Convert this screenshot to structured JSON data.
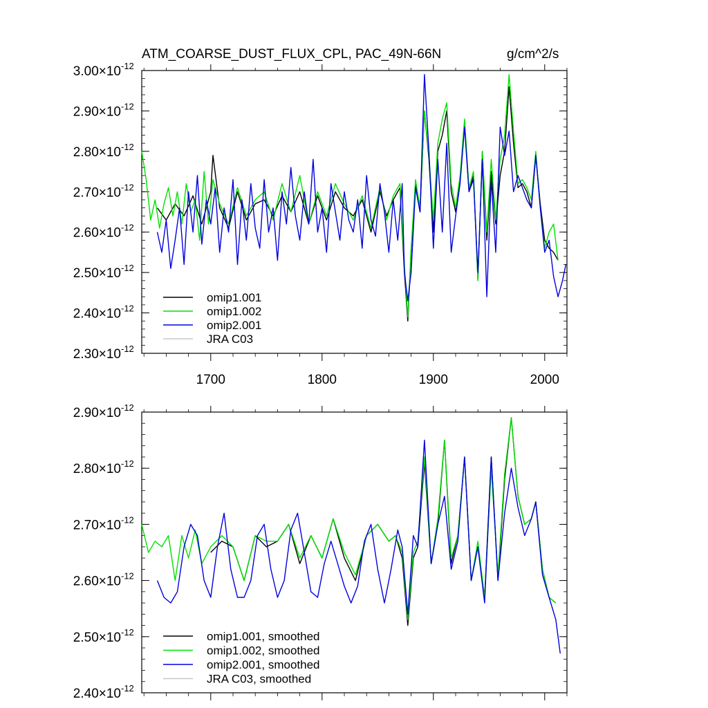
{
  "chart_data": [
    {
      "type": "line",
      "title": "ATM_COARSE_DUST_FLUX_CPL, PAC_49N-66N",
      "units": "g/cm^2/s",
      "xlabel": "",
      "ylabel": "",
      "xlim": [
        1638,
        2020
      ],
      "ylim": [
        2.3,
        3.0
      ],
      "x_ticks": [
        1700,
        1800,
        1900,
        2000
      ],
      "x_tick_labels": [
        "1700",
        "1800",
        "1900",
        "2000"
      ],
      "y_ticks": [
        2.3,
        2.4,
        2.5,
        2.6,
        2.7,
        2.8,
        2.9,
        3.0
      ],
      "y_tick_mantissas": [
        "2.30",
        "2.40",
        "2.50",
        "2.60",
        "2.70",
        "2.80",
        "2.90",
        "3.00"
      ],
      "y_tick_multiplier": "×10",
      "y_tick_exponent": "-12",
      "grid": false,
      "legend_position": "bottom-left",
      "series": [
        {
          "name": "omip1.001",
          "color": "#000000",
          "x": [
            1652,
            1660,
            1668,
            1676,
            1684,
            1692,
            1700,
            1702,
            1708,
            1716,
            1724,
            1732,
            1740,
            1748,
            1756,
            1764,
            1772,
            1780,
            1788,
            1796,
            1804,
            1812,
            1820,
            1828,
            1836,
            1844,
            1852,
            1858,
            1864,
            1870,
            1874,
            1877,
            1880,
            1884,
            1888,
            1892,
            1896,
            1900,
            1904,
            1908,
            1912,
            1916,
            1920,
            1924,
            1928,
            1932,
            1936,
            1940,
            1944,
            1948,
            1952,
            1956,
            1960,
            1964,
            1968,
            1972,
            1976,
            1980,
            1984,
            1988,
            1992,
            1996,
            2000,
            2004,
            2008,
            2012
          ],
          "values": [
            2.66,
            2.63,
            2.67,
            2.64,
            2.69,
            2.62,
            2.7,
            2.79,
            2.66,
            2.61,
            2.7,
            2.63,
            2.67,
            2.68,
            2.64,
            2.69,
            2.65,
            2.7,
            2.62,
            2.69,
            2.63,
            2.7,
            2.66,
            2.64,
            2.68,
            2.6,
            2.7,
            2.64,
            2.68,
            2.71,
            2.5,
            2.38,
            2.55,
            2.72,
            2.65,
            2.9,
            2.78,
            2.6,
            2.8,
            2.84,
            2.9,
            2.7,
            2.65,
            2.73,
            2.87,
            2.7,
            2.74,
            2.48,
            2.8,
            2.58,
            2.75,
            2.62,
            2.74,
            2.8,
            2.96,
            2.82,
            2.71,
            2.72,
            2.7,
            2.66,
            2.79,
            2.67,
            2.58,
            2.56,
            2.55,
            2.53
          ]
        },
        {
          "name": "omip1.002",
          "color": "#00e000",
          "x": [
            1638,
            1642,
            1646,
            1650,
            1654,
            1658,
            1662,
            1666,
            1670,
            1674,
            1678,
            1682,
            1686,
            1690,
            1694,
            1698,
            1702,
            1708,
            1716,
            1724,
            1732,
            1740,
            1748,
            1756,
            1764,
            1772,
            1780,
            1788,
            1796,
            1804,
            1812,
            1820,
            1828,
            1836,
            1844,
            1852,
            1858,
            1864,
            1870,
            1874,
            1877,
            1880,
            1884,
            1888,
            1892,
            1896,
            1900,
            1904,
            1908,
            1912,
            1916,
            1920,
            1924,
            1928,
            1932,
            1936,
            1940,
            1944,
            1948,
            1952,
            1956,
            1960,
            1964,
            1968,
            1972,
            1976,
            1980,
            1984,
            1988,
            1992,
            1996,
            2000,
            2004,
            2008,
            2012
          ],
          "values": [
            2.8,
            2.73,
            2.63,
            2.68,
            2.61,
            2.67,
            2.71,
            2.64,
            2.7,
            2.62,
            2.72,
            2.65,
            2.68,
            2.58,
            2.75,
            2.62,
            2.73,
            2.67,
            2.62,
            2.71,
            2.64,
            2.68,
            2.7,
            2.63,
            2.72,
            2.65,
            2.74,
            2.62,
            2.7,
            2.64,
            2.72,
            2.67,
            2.63,
            2.69,
            2.61,
            2.71,
            2.63,
            2.69,
            2.72,
            2.52,
            2.39,
            2.56,
            2.73,
            2.66,
            2.9,
            2.79,
            2.63,
            2.82,
            2.88,
            2.92,
            2.72,
            2.66,
            2.74,
            2.88,
            2.71,
            2.75,
            2.48,
            2.8,
            2.6,
            2.78,
            2.63,
            2.78,
            2.84,
            2.99,
            2.85,
            2.72,
            2.73,
            2.71,
            2.68,
            2.8,
            2.66,
            2.56,
            2.6,
            2.62,
            2.53
          ]
        },
        {
          "name": "omip2.001",
          "color": "#0000dd",
          "x": [
            1652,
            1656,
            1660,
            1664,
            1668,
            1672,
            1676,
            1680,
            1684,
            1688,
            1692,
            1696,
            1700,
            1704,
            1708,
            1712,
            1716,
            1720,
            1724,
            1728,
            1732,
            1736,
            1740,
            1744,
            1748,
            1752,
            1756,
            1760,
            1764,
            1768,
            1772,
            1776,
            1780,
            1784,
            1788,
            1792,
            1796,
            1800,
            1804,
            1808,
            1812,
            1816,
            1820,
            1824,
            1828,
            1832,
            1836,
            1840,
            1844,
            1848,
            1852,
            1856,
            1860,
            1864,
            1868,
            1872,
            1874,
            1877,
            1880,
            1884,
            1888,
            1892,
            1896,
            1900,
            1904,
            1908,
            1912,
            1916,
            1920,
            1924,
            1928,
            1932,
            1936,
            1940,
            1944,
            1948,
            1952,
            1956,
            1960,
            1964,
            1968,
            1972,
            1976,
            1980,
            1984,
            1988,
            1992,
            1996,
            2000,
            2004,
            2008,
            2012,
            2016,
            2019
          ],
          "values": [
            2.6,
            2.55,
            2.63,
            2.51,
            2.58,
            2.66,
            2.52,
            2.7,
            2.6,
            2.74,
            2.57,
            2.68,
            2.62,
            2.71,
            2.55,
            2.66,
            2.6,
            2.73,
            2.52,
            2.68,
            2.58,
            2.72,
            2.61,
            2.56,
            2.73,
            2.6,
            2.66,
            2.53,
            2.7,
            2.62,
            2.76,
            2.64,
            2.58,
            2.7,
            2.62,
            2.78,
            2.6,
            2.66,
            2.55,
            2.72,
            2.65,
            2.58,
            2.7,
            2.63,
            2.6,
            2.68,
            2.56,
            2.74,
            2.63,
            2.59,
            2.72,
            2.65,
            2.55,
            2.68,
            2.58,
            2.72,
            2.5,
            2.43,
            2.5,
            2.71,
            2.65,
            2.99,
            2.8,
            2.56,
            2.78,
            2.6,
            2.82,
            2.55,
            2.64,
            2.72,
            2.86,
            2.7,
            2.73,
            2.5,
            2.78,
            2.44,
            2.73,
            2.55,
            2.86,
            2.79,
            2.85,
            2.7,
            2.74,
            2.71,
            2.68,
            2.66,
            2.79,
            2.66,
            2.55,
            2.58,
            2.49,
            2.44,
            2.48,
            2.52
          ]
        },
        {
          "name": "JRA C03",
          "color": "#c8c8c8",
          "x": [],
          "values": []
        }
      ]
    },
    {
      "type": "line",
      "title": "",
      "xlabel": "",
      "ylabel": "",
      "xlim": [
        1638,
        2020
      ],
      "ylim": [
        2.4,
        2.9
      ],
      "x_ticks": [
        1700,
        1800,
        1900,
        2000
      ],
      "x_tick_labels": [],
      "y_ticks": [
        2.4,
        2.5,
        2.6,
        2.7,
        2.8,
        2.9
      ],
      "y_tick_mantissas": [
        "2.40",
        "2.50",
        "2.60",
        "2.70",
        "2.80",
        "2.90"
      ],
      "y_tick_multiplier": "×10",
      "y_tick_exponent": "-12",
      "grid": false,
      "legend_position": "bottom-left",
      "series": [
        {
          "name": "omip1.001, smoothed",
          "color": "#000000",
          "x": [
            1700,
            1710,
            1720,
            1730,
            1740,
            1750,
            1760,
            1770,
            1780,
            1790,
            1800,
            1810,
            1820,
            1830,
            1840,
            1850,
            1860,
            1866,
            1872,
            1877,
            1882,
            1886,
            1892,
            1898,
            1904,
            1910,
            1916,
            1922,
            1928,
            1934,
            1940,
            1946,
            1952,
            1958,
            1964,
            1970,
            1976,
            1982,
            1988,
            1992,
            1998,
            2004,
            2010
          ],
          "values": [
            2.65,
            2.67,
            2.66,
            2.6,
            2.68,
            2.66,
            2.67,
            2.7,
            2.63,
            2.68,
            2.64,
            2.71,
            2.64,
            2.6,
            2.68,
            2.7,
            2.67,
            2.68,
            2.64,
            2.52,
            2.64,
            2.66,
            2.81,
            2.63,
            2.7,
            2.85,
            2.63,
            2.68,
            2.82,
            2.6,
            2.66,
            2.57,
            2.82,
            2.6,
            2.78,
            2.89,
            2.75,
            2.7,
            2.71,
            2.74,
            2.62,
            2.57,
            2.56
          ]
        },
        {
          "name": "omip1.002, smoothed",
          "color": "#00e000",
          "x": [
            1638,
            1644,
            1650,
            1656,
            1662,
            1668,
            1674,
            1680,
            1686,
            1692,
            1700,
            1710,
            1720,
            1730,
            1740,
            1750,
            1760,
            1770,
            1780,
            1790,
            1800,
            1810,
            1820,
            1830,
            1840,
            1850,
            1860,
            1866,
            1872,
            1877,
            1882,
            1886,
            1892,
            1898,
            1904,
            1910,
            1916,
            1922,
            1928,
            1934,
            1940,
            1946,
            1952,
            1958,
            1964,
            1970,
            1976,
            1982,
            1988,
            1992,
            1998,
            2004,
            2010
          ],
          "values": [
            2.7,
            2.65,
            2.67,
            2.66,
            2.68,
            2.6,
            2.68,
            2.64,
            2.69,
            2.63,
            2.66,
            2.68,
            2.66,
            2.6,
            2.68,
            2.67,
            2.67,
            2.7,
            2.64,
            2.68,
            2.64,
            2.71,
            2.65,
            2.61,
            2.68,
            2.7,
            2.67,
            2.68,
            2.65,
            2.53,
            2.65,
            2.67,
            2.82,
            2.63,
            2.71,
            2.85,
            2.64,
            2.68,
            2.82,
            2.6,
            2.67,
            2.57,
            2.8,
            2.61,
            2.79,
            2.89,
            2.75,
            2.7,
            2.71,
            2.74,
            2.62,
            2.57,
            2.56
          ]
        },
        {
          "name": "omip2.001, smoothed",
          "color": "#0000dd",
          "x": [
            1652,
            1658,
            1664,
            1670,
            1676,
            1682,
            1688,
            1694,
            1700,
            1706,
            1712,
            1718,
            1724,
            1730,
            1736,
            1742,
            1748,
            1754,
            1760,
            1766,
            1772,
            1778,
            1784,
            1790,
            1796,
            1802,
            1808,
            1814,
            1820,
            1826,
            1832,
            1838,
            1844,
            1850,
            1856,
            1862,
            1868,
            1872,
            1877,
            1882,
            1886,
            1892,
            1898,
            1904,
            1910,
            1916,
            1922,
            1928,
            1934,
            1940,
            1946,
            1952,
            1958,
            1964,
            1970,
            1976,
            1982,
            1988,
            1992,
            1998,
            2004,
            2010,
            2014
          ],
          "values": [
            2.6,
            2.57,
            2.56,
            2.58,
            2.66,
            2.7,
            2.68,
            2.6,
            2.57,
            2.66,
            2.72,
            2.62,
            2.57,
            2.57,
            2.6,
            2.68,
            2.7,
            2.62,
            2.57,
            2.6,
            2.69,
            2.72,
            2.65,
            2.58,
            2.57,
            2.63,
            2.67,
            2.63,
            2.59,
            2.56,
            2.59,
            2.67,
            2.7,
            2.62,
            2.56,
            2.62,
            2.69,
            2.66,
            2.54,
            2.68,
            2.66,
            2.85,
            2.63,
            2.7,
            2.75,
            2.62,
            2.67,
            2.82,
            2.6,
            2.66,
            2.56,
            2.82,
            2.6,
            2.72,
            2.8,
            2.73,
            2.68,
            2.71,
            2.74,
            2.61,
            2.57,
            2.53,
            2.47
          ]
        },
        {
          "name": "JRA C03, smoothed",
          "color": "#c8c8c8",
          "x": [],
          "values": []
        }
      ]
    }
  ]
}
